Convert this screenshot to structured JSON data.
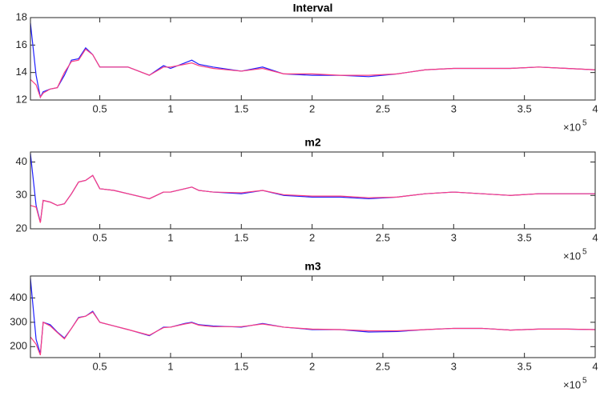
{
  "chart_data": [
    {
      "type": "line",
      "title": "Interval",
      "x": [
        0.01,
        0.05,
        0.08,
        0.1,
        0.15,
        0.2,
        0.25,
        0.3,
        0.35,
        0.4,
        0.45,
        0.5,
        0.6,
        0.7,
        0.85,
        0.95,
        1.0,
        1.1,
        1.15,
        1.2,
        1.3,
        1.5,
        1.65,
        1.8,
        2.0,
        2.2,
        2.4,
        2.6,
        2.8,
        3.0,
        3.2,
        3.4,
        3.6,
        3.8,
        4.0
      ],
      "series": [
        {
          "color": "#1f1fff",
          "values": [
            17.6,
            13.8,
            12.2,
            12.6,
            12.8,
            12.9,
            13.8,
            14.9,
            15.0,
            15.8,
            15.3,
            14.4,
            14.4,
            14.4,
            13.8,
            14.5,
            14.3,
            14.7,
            14.9,
            14.6,
            14.4,
            14.1,
            14.4,
            13.9,
            13.8,
            13.8,
            13.7,
            13.9,
            14.2,
            14.3,
            14.3,
            14.3,
            14.4,
            14.3,
            14.2
          ]
        },
        {
          "color": "#ff3d7f",
          "values": [
            13.5,
            13.1,
            12.2,
            12.5,
            12.8,
            12.9,
            14.0,
            14.8,
            14.9,
            15.7,
            15.3,
            14.4,
            14.4,
            14.4,
            13.8,
            14.4,
            14.4,
            14.6,
            14.7,
            14.5,
            14.3,
            14.1,
            14.3,
            13.9,
            13.9,
            13.8,
            13.8,
            13.9,
            14.2,
            14.3,
            14.3,
            14.3,
            14.4,
            14.3,
            14.2
          ]
        }
      ],
      "xlim": [
        0.01,
        4
      ],
      "xticks": [
        0.5,
        1,
        1.5,
        2,
        2.5,
        3,
        3.5,
        4
      ],
      "x_scale_label": "×10",
      "x_scale_exponent": "5",
      "ylim": [
        12,
        18
      ],
      "yticks": [
        12,
        14,
        16,
        18
      ]
    },
    {
      "type": "line",
      "title": "m2",
      "x": [
        0.01,
        0.05,
        0.08,
        0.1,
        0.15,
        0.2,
        0.25,
        0.3,
        0.35,
        0.4,
        0.45,
        0.5,
        0.6,
        0.7,
        0.85,
        0.95,
        1.0,
        1.1,
        1.15,
        1.2,
        1.3,
        1.5,
        1.65,
        1.8,
        2.0,
        2.2,
        2.4,
        2.6,
        2.8,
        3.0,
        3.2,
        3.4,
        3.6,
        3.8,
        4.0
      ],
      "series": [
        {
          "color": "#1f1fff",
          "values": [
            42.5,
            27,
            22,
            28.5,
            28,
            27,
            27.5,
            30.5,
            34,
            34.5,
            36,
            32,
            31.5,
            30.5,
            29,
            31,
            31,
            32,
            32.5,
            31.5,
            31,
            30.5,
            31.5,
            30,
            29.5,
            29.5,
            29,
            29.5,
            30.5,
            31,
            30.5,
            30,
            30.5,
            30.5,
            30.5
          ]
        },
        {
          "color": "#ff3d7f",
          "values": [
            27,
            26.5,
            21.8,
            28.5,
            28,
            27,
            27.5,
            30.5,
            34,
            34.5,
            36,
            32,
            31.5,
            30.5,
            29,
            31,
            31,
            32,
            32.5,
            31.5,
            31,
            30.8,
            31.5,
            30.2,
            29.8,
            29.8,
            29.3,
            29.5,
            30.5,
            31,
            30.5,
            30,
            30.5,
            30.5,
            30.5
          ]
        }
      ],
      "xlim": [
        0.01,
        4
      ],
      "xticks": [
        0.5,
        1,
        1.5,
        2,
        2.5,
        3,
        3.5,
        4
      ],
      "x_scale_label": "×10",
      "x_scale_exponent": "5",
      "ylim": [
        20,
        43
      ],
      "yticks": [
        20,
        30,
        40
      ]
    },
    {
      "type": "line",
      "title": "m3",
      "x": [
        0.01,
        0.05,
        0.08,
        0.1,
        0.15,
        0.2,
        0.25,
        0.3,
        0.35,
        0.4,
        0.45,
        0.5,
        0.6,
        0.7,
        0.85,
        0.95,
        1.0,
        1.1,
        1.15,
        1.2,
        1.3,
        1.5,
        1.65,
        1.8,
        2.0,
        2.2,
        2.4,
        2.6,
        2.8,
        3.0,
        3.2,
        3.4,
        3.6,
        3.8,
        4.0
      ],
      "series": [
        {
          "color": "#1f1fff",
          "values": [
            480,
            230,
            170,
            300,
            290,
            260,
            235,
            275,
            320,
            325,
            345,
            300,
            285,
            270,
            245,
            280,
            280,
            295,
            300,
            290,
            285,
            280,
            295,
            280,
            270,
            270,
            260,
            262,
            270,
            275,
            275,
            268,
            272,
            272,
            270
          ]
        },
        {
          "color": "#ff3d7f",
          "values": [
            240,
            210,
            165,
            300,
            285,
            258,
            232,
            275,
            318,
            325,
            342,
            300,
            285,
            270,
            247,
            278,
            280,
            293,
            298,
            288,
            282,
            282,
            293,
            280,
            272,
            270,
            265,
            265,
            270,
            275,
            275,
            268,
            272,
            272,
            270
          ]
        }
      ],
      "xlim": [
        0.01,
        4
      ],
      "xticks": [
        0.5,
        1,
        1.5,
        2,
        2.5,
        3,
        3.5,
        4
      ],
      "x_scale_label": "×10",
      "x_scale_exponent": "5",
      "ylim": [
        155,
        490
      ],
      "yticks": [
        200,
        300,
        400
      ]
    }
  ]
}
